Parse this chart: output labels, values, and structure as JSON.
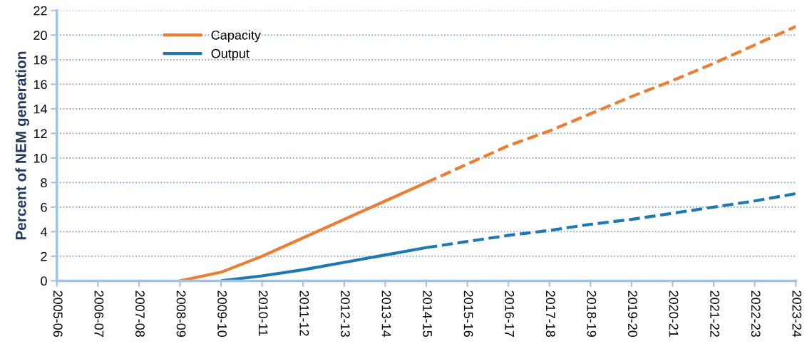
{
  "chart_data": {
    "type": "line",
    "ylabel": "Percent of NEM generation",
    "categories": [
      "2005-06",
      "2006-07",
      "2007-08",
      "2008-09",
      "2009-10",
      "2010-11",
      "2011-12",
      "2012-13",
      "2013-14",
      "2014-15",
      "2015-16",
      "2016-17",
      "2017-18",
      "2018-19",
      "2019-20",
      "2020-21",
      "2021-22",
      "2022-23",
      "2023-24"
    ],
    "series": [
      {
        "name": "Capacity",
        "color": "#ed7d31",
        "line_style": "solid",
        "values": [
          null,
          null,
          null,
          0,
          0.7,
          2.0,
          3.5,
          5.0,
          6.5,
          8.0,
          null,
          null,
          null,
          null,
          null,
          null,
          null,
          null,
          null
        ]
      },
      {
        "name": "Output",
        "color": "#1f78b4",
        "line_style": "solid",
        "values": [
          null,
          null,
          null,
          null,
          0,
          0.4,
          0.9,
          1.5,
          2.1,
          2.7,
          null,
          null,
          null,
          null,
          null,
          null,
          null,
          null,
          null
        ]
      },
      {
        "color": "#ed7d31",
        "line_style": "dashed",
        "values": [
          null,
          null,
          null,
          null,
          null,
          null,
          null,
          null,
          null,
          8.0,
          9.5,
          11.0,
          12.2,
          13.6,
          15.0,
          16.3,
          17.7,
          19.2,
          20.7
        ]
      },
      {
        "color": "#1f78b4",
        "line_style": "dashed",
        "values": [
          null,
          null,
          null,
          null,
          null,
          null,
          null,
          null,
          null,
          2.7,
          3.2,
          3.7,
          4.1,
          4.6,
          5.0,
          5.5,
          6.0,
          6.5,
          7.1
        ]
      }
    ],
    "ylim": [
      0,
      22
    ],
    "yticks": [
      0,
      2,
      4,
      6,
      8,
      10,
      12,
      14,
      16,
      18,
      20,
      22
    ],
    "grid": "y",
    "legend": "top left",
    "marker": "none"
  }
}
